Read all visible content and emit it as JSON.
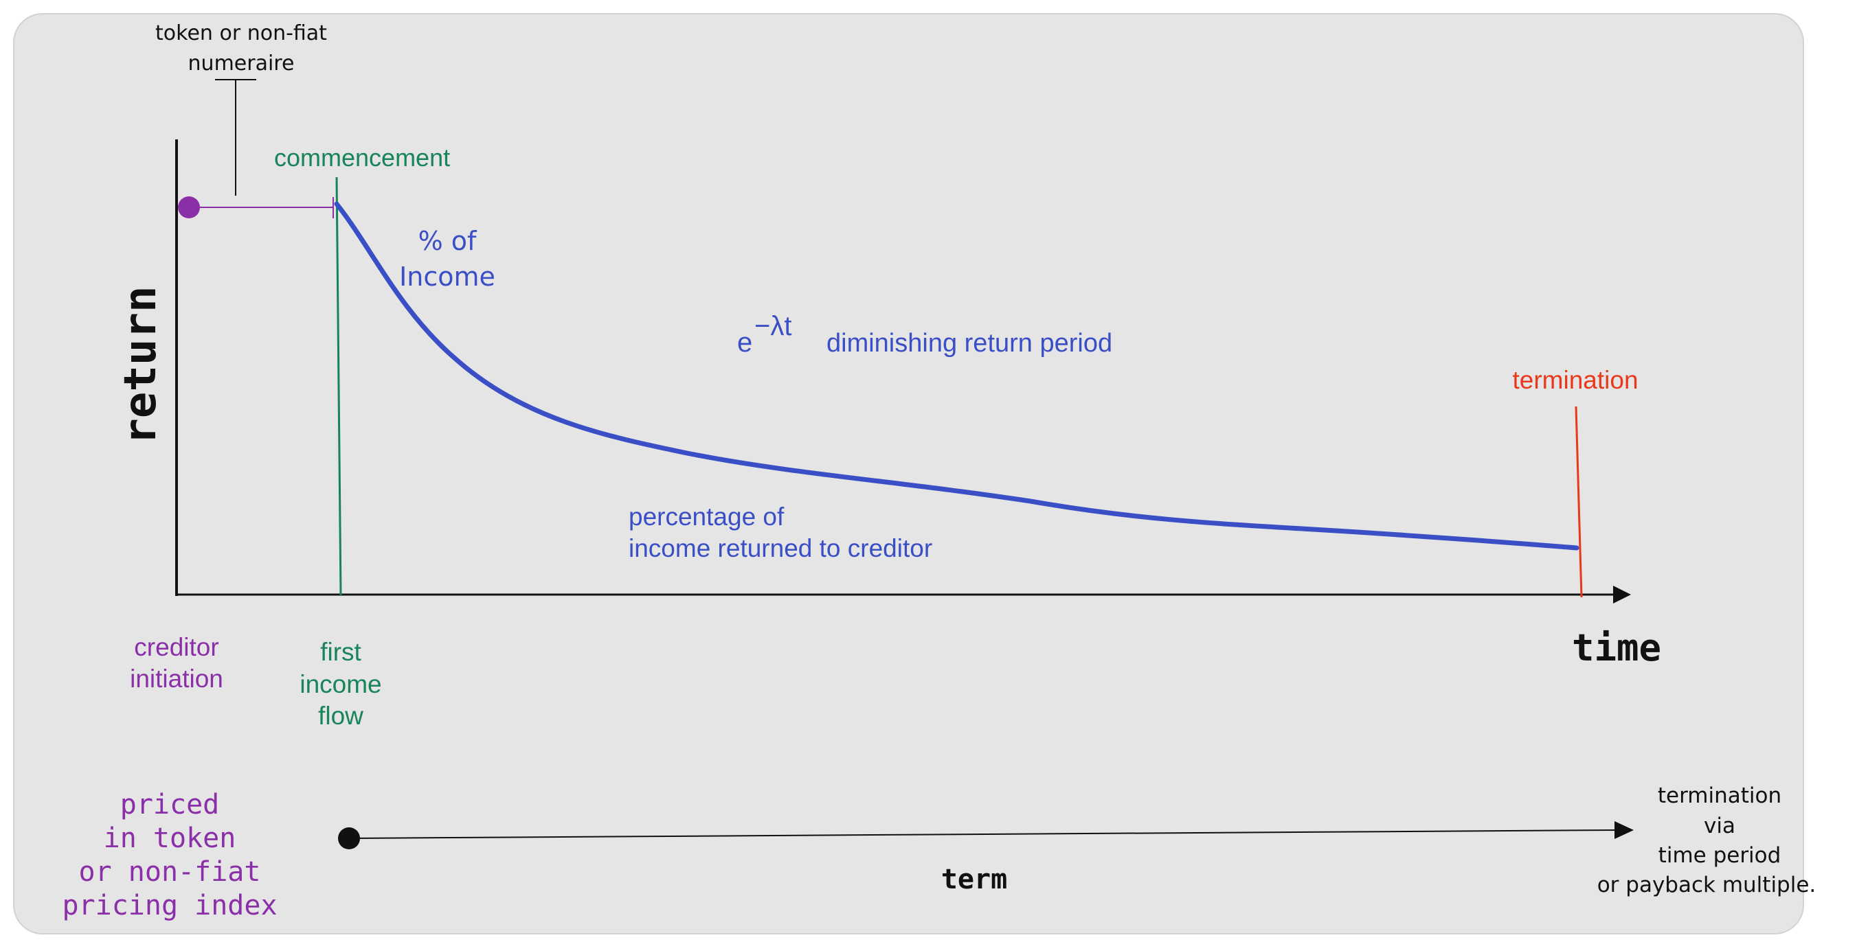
{
  "colors": {
    "panel": "#e5e5e6",
    "panel_border": "#d2d2d4",
    "axis": "#111111",
    "purple": "#8b2fa8",
    "green": "#17845a",
    "blue": "#3a4fc6",
    "red": "#e8391d",
    "black": "#111111"
  },
  "labels": {
    "numeraire_line1": "token or non-fiat",
    "numeraire_line2": "numeraire",
    "commencement": "commencement",
    "pct_income_line1": "% of",
    "pct_income_line2": "Income",
    "formula_base": "e",
    "formula_exponent": "−λt",
    "diminishing": "diminishing return period",
    "termination": "termination",
    "percentage_line1": "percentage of",
    "percentage_line2": "income returned to creditor",
    "y_axis": "return",
    "x_axis": "time",
    "creditor_line1": "creditor",
    "creditor_line2": "initiation",
    "first_line1": "first",
    "first_line2": "income",
    "first_line3": "flow",
    "priced_line1": "priced",
    "priced_line2": "in token",
    "priced_line3": "or non-fiat",
    "priced_line4": "pricing index",
    "term": "term",
    "term_end_line1": "termination",
    "term_end_line2": "via",
    "term_end_line3": "time period",
    "term_end_line4": "or payback multiple."
  }
}
